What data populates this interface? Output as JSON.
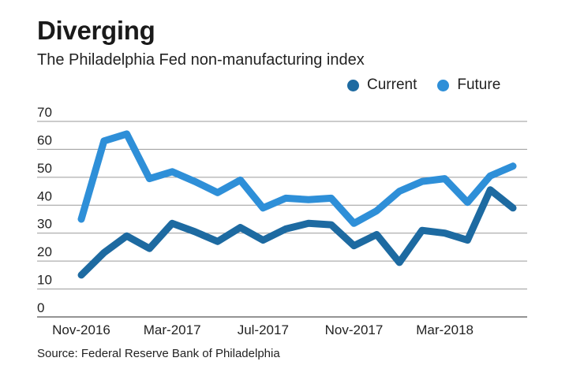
{
  "title": "Diverging",
  "subtitle": "The Philadelphia Fed non-manufacturing index",
  "source": "Source: Federal Reserve Bank of Philadelphia",
  "chart_data": {
    "type": "line",
    "title": "Diverging",
    "subtitle": "The Philadelphia Fed non-manufacturing index",
    "x": [
      "2016-11",
      "2016-12",
      "2017-01",
      "2017-02",
      "2017-03",
      "2017-04",
      "2017-05",
      "2017-06",
      "2017-07",
      "2017-08",
      "2017-09",
      "2017-10",
      "2017-11",
      "2017-12",
      "2018-01",
      "2018-02",
      "2018-03",
      "2018-04",
      "2018-05",
      "2018-06"
    ],
    "x_tick_labels": [
      "Nov-2016",
      "Mar-2017",
      "Jul-2017",
      "Nov-2017",
      "Mar-2018"
    ],
    "x_tick_positions": [
      "2016-11",
      "2017-03",
      "2017-07",
      "2017-11",
      "2018-03"
    ],
    "ylim": [
      0,
      70
    ],
    "y_ticks": [
      0,
      10,
      20,
      30,
      40,
      50,
      60,
      70
    ],
    "grid": true,
    "legend_position": "top-right",
    "series": [
      {
        "name": "Current",
        "color": "#1d6aa1",
        "values": [
          15,
          23,
          29,
          24.5,
          33.5,
          30.5,
          27,
          32,
          27.5,
          31.5,
          33.5,
          33,
          25.5,
          29.5,
          19.5,
          31,
          30,
          27.5,
          45.5,
          39
        ]
      },
      {
        "name": "Future",
        "color": "#2e8fd8",
        "values": [
          35,
          63,
          65.5,
          49.5,
          52,
          48.5,
          44.5,
          49,
          39,
          42.5,
          42,
          42.5,
          33.5,
          38,
          45,
          48.5,
          49.5,
          41,
          50.5,
          54
        ]
      }
    ]
  }
}
